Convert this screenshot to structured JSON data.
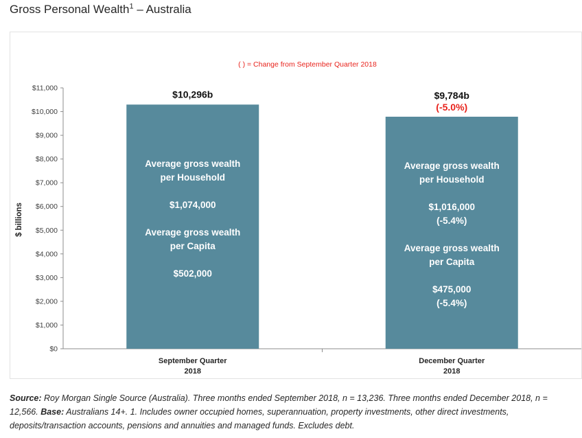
{
  "page": {
    "title": "Gross Personal Wealth",
    "title_sup": "1",
    "title_suffix": " – Australia"
  },
  "chart_data": {
    "type": "bar",
    "note": "( ) = Change from September Quarter 2018",
    "ylabel": "$ billions",
    "ylim": [
      0,
      11000
    ],
    "yticks": [
      0,
      1000,
      2000,
      3000,
      4000,
      5000,
      6000,
      7000,
      8000,
      9000,
      10000,
      11000
    ],
    "ytick_labels": [
      "$0",
      "$1,000",
      "$2,000",
      "$3,000",
      "$4,000",
      "$5,000",
      "$6,000",
      "$7,000",
      "$8,000",
      "$9,000",
      "$10,000",
      "$11,000"
    ],
    "categories": [
      "September Quarter\n2018",
      "December Quarter\n2018"
    ],
    "values": [
      10296,
      9784
    ],
    "value_labels": [
      "$10,296b",
      "$9,784b"
    ],
    "change_labels": [
      "",
      "(-5.0%)"
    ],
    "inner_labels": [
      [
        "Average gross wealth",
        "per Household",
        "",
        "$1,074,000",
        "",
        "Average gross wealth",
        "per Capita",
        "",
        "$502,000"
      ],
      [
        "Average gross wealth",
        "per Household",
        "",
        "$1,016,000",
        "(-5.4%)",
        "",
        "Average gross wealth",
        "per Capita",
        "",
        "$475,000",
        "(-5.4%)"
      ]
    ],
    "bar_color": "#578a9c",
    "change_color": "#e8231c",
    "grid": false
  },
  "footnote": {
    "source_label": "Source:",
    "source_text": " Roy Morgan Single Source (Australia). Three months ended September 2018, n = 13,236. Three months ended December 2018, n = 12,566. ",
    "base_label": "Base:",
    "base_text": " Australians 14+. 1. Includes owner occupied homes, superannuation, property investments, other direct investments, deposits/transaction accounts, pensions and annuities and managed funds. Excludes debt."
  }
}
